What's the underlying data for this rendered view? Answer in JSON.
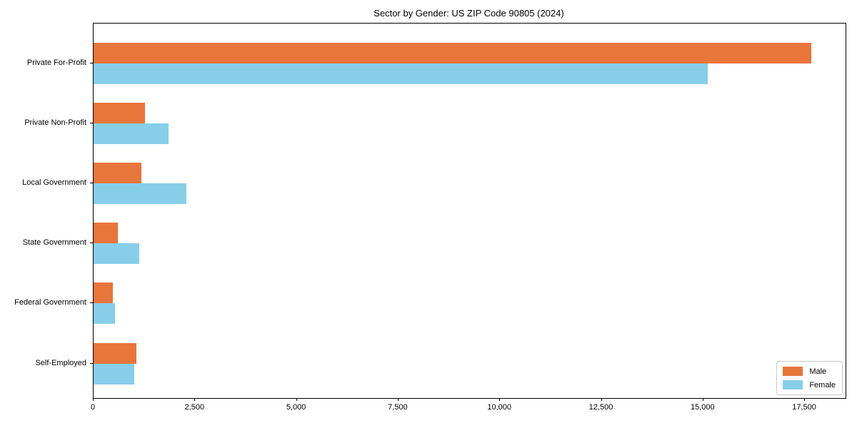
{
  "chart_data": {
    "type": "bar",
    "orientation": "horizontal",
    "title": "Sector by Gender: US ZIP Code 90805 (2024)",
    "xlabel": "",
    "ylabel": "",
    "grid": false,
    "legend_position": "lower right",
    "xlim": [
      0,
      18500
    ],
    "categories": [
      "Private For-Profit",
      "Private Non-Profit",
      "Local Government",
      "State Government",
      "Federal Government",
      "Self-Employed"
    ],
    "series": [
      {
        "name": "Male",
        "color": "#e8763b",
        "values": [
          17650,
          1260,
          1170,
          590,
          480,
          1060
        ]
      },
      {
        "name": "Female",
        "color": "#87ceeb",
        "values": [
          15100,
          1850,
          2280,
          1120,
          530,
          1000
        ]
      }
    ],
    "xticks": [
      {
        "value": 0,
        "label": "0"
      },
      {
        "value": 2500,
        "label": "2,500"
      },
      {
        "value": 5000,
        "label": "5,000"
      },
      {
        "value": 7500,
        "label": "7,500"
      },
      {
        "value": 10000,
        "label": "10,000"
      },
      {
        "value": 12500,
        "label": "12,500"
      },
      {
        "value": 15000,
        "label": "15,000"
      },
      {
        "value": 17500,
        "label": "17,500"
      }
    ]
  }
}
